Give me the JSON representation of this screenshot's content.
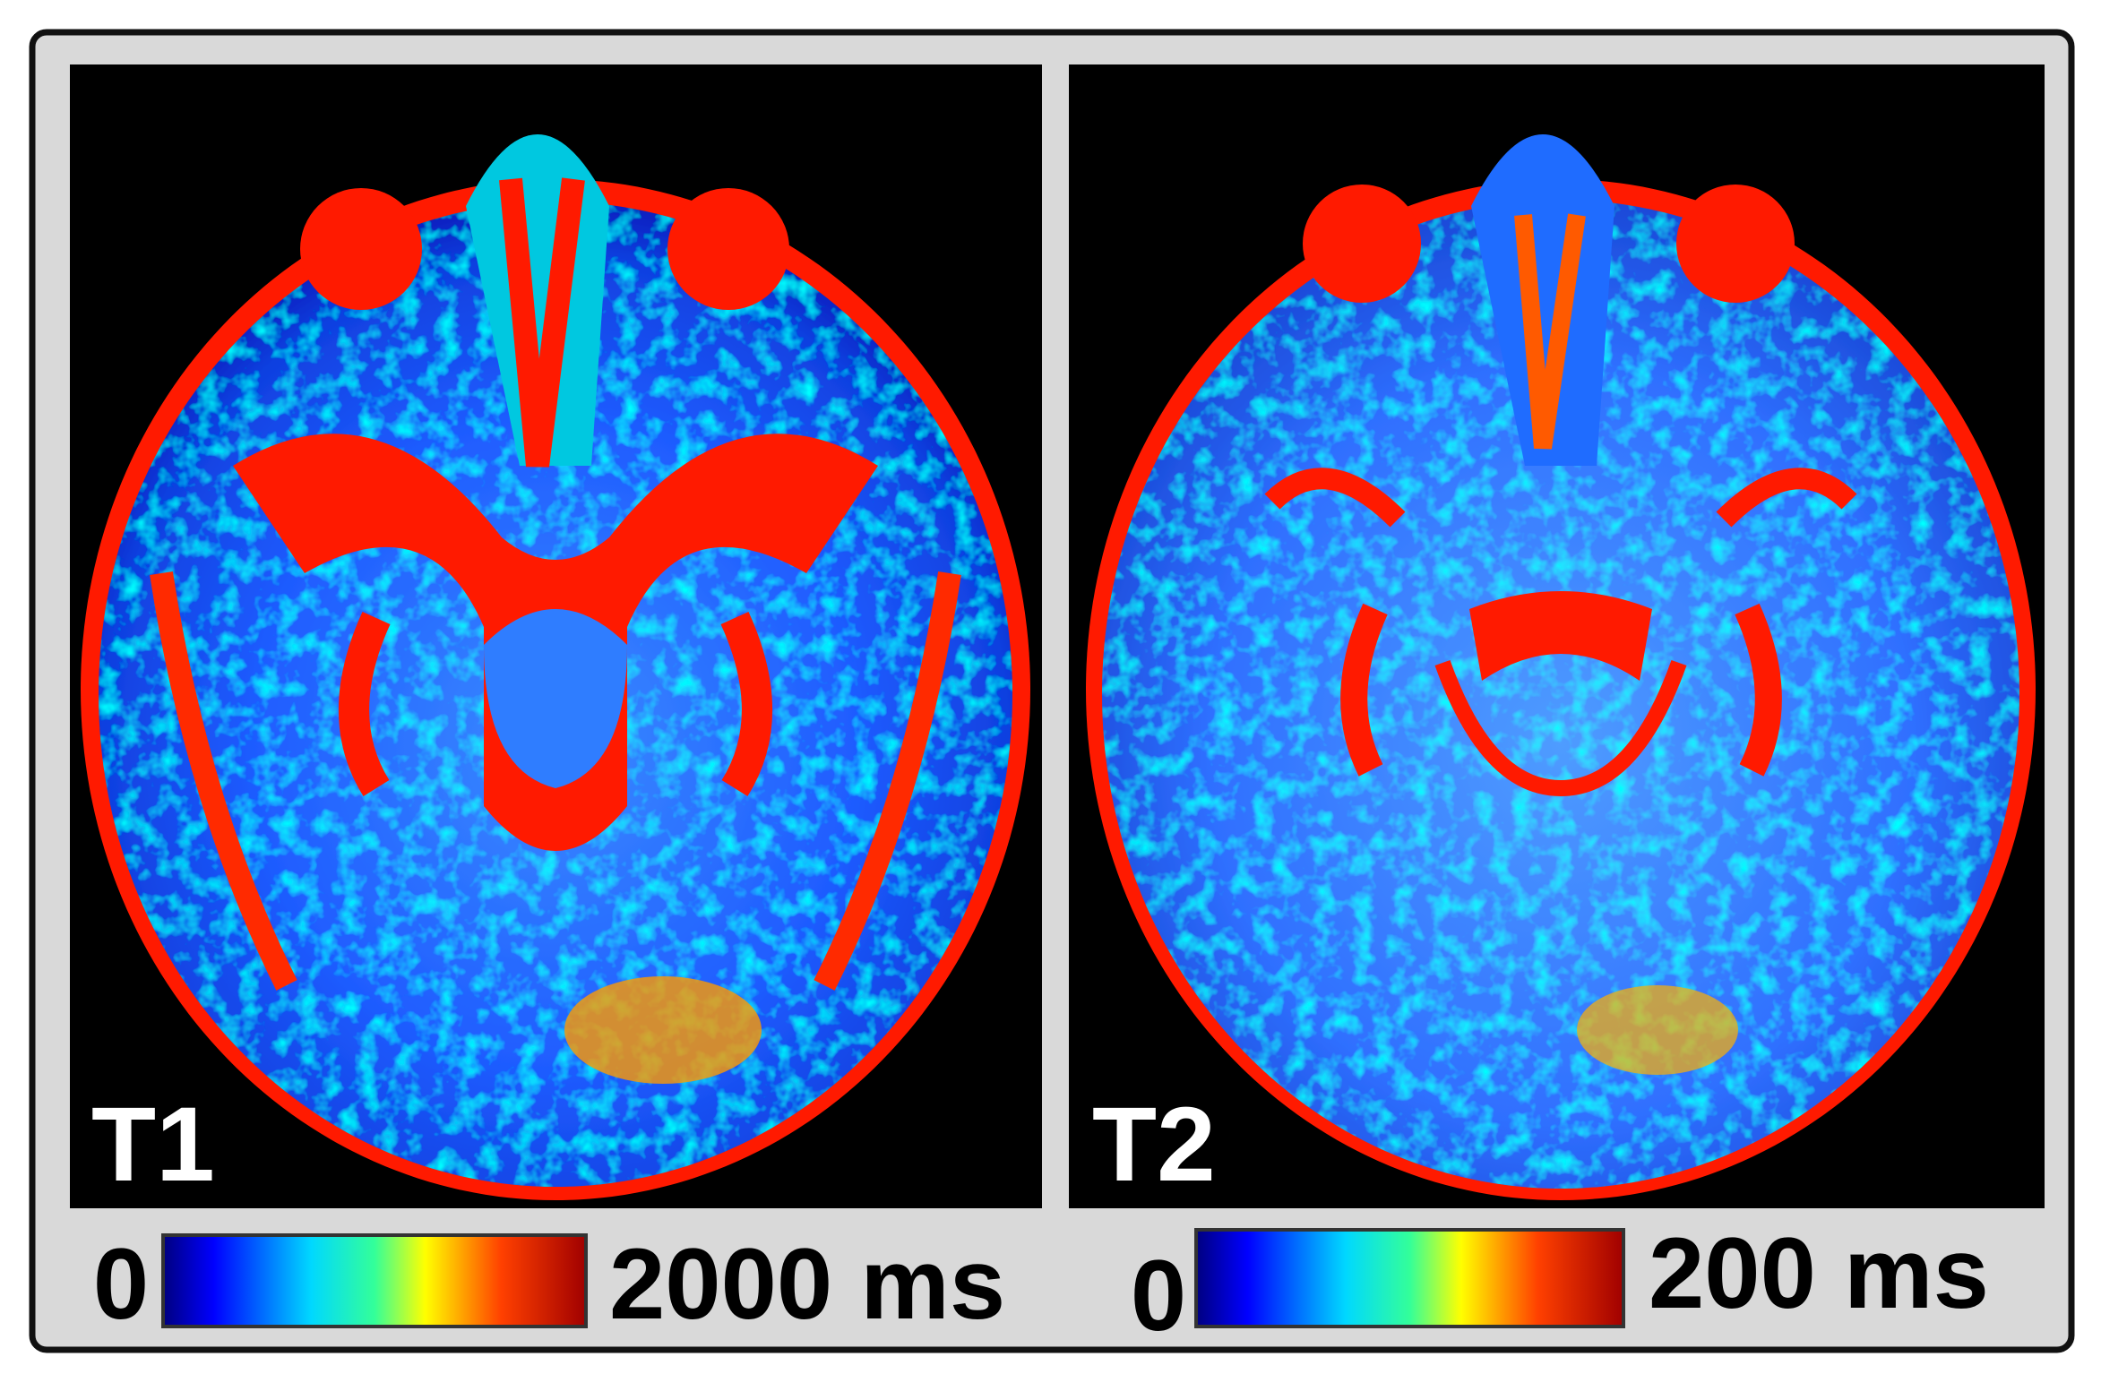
{
  "panels": [
    {
      "label": "T1",
      "colorbar_min": "0",
      "colorbar_max": "2000 ms"
    },
    {
      "label": "T2",
      "colorbar_min": "0",
      "colorbar_max": "200 ms"
    }
  ]
}
